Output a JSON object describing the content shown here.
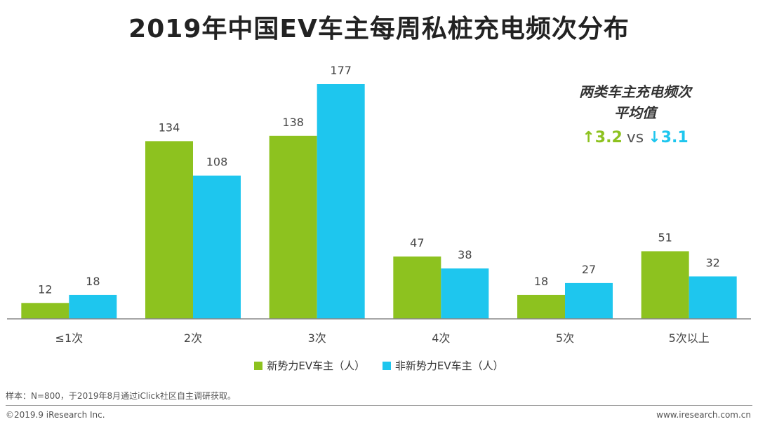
{
  "title": "2019年中国EV车主每周私桩充电频次分布",
  "colors": {
    "series1": "#8dc21f",
    "series2": "#1ec6ee",
    "axis": "#888888",
    "label": "#444444"
  },
  "chart_data": {
    "type": "bar",
    "title": "2019年中国EV车主每周私桩充电频次分布",
    "categories": [
      "≤1次",
      "2次",
      "3次",
      "4次",
      "5次",
      "5次以上"
    ],
    "series": [
      {
        "name": "新势力EV车主（人）",
        "values": [
          12,
          134,
          138,
          47,
          18,
          51
        ]
      },
      {
        "name": "非新势力EV车主（人）",
        "values": [
          18,
          108,
          177,
          38,
          27,
          32
        ]
      }
    ],
    "xlabel": "",
    "ylabel": "",
    "ylim": [
      0,
      177
    ],
    "grid": false,
    "legend": "bottom-center"
  },
  "average": {
    "title_line1": "两类车主充电频次",
    "title_line2": "平均值",
    "value1": "↑3.2",
    "vs": "vs",
    "value2": "↓3.1"
  },
  "legend": {
    "series1": "新势力EV车主（人）",
    "series2": "非新势力EV车主（人）"
  },
  "footnote": "样本：N=800，于2019年8月通过iClick社区自主调研获取。",
  "copyright": "©2019.9  iResearch Inc.",
  "website": "www.iresearch.com.cn"
}
